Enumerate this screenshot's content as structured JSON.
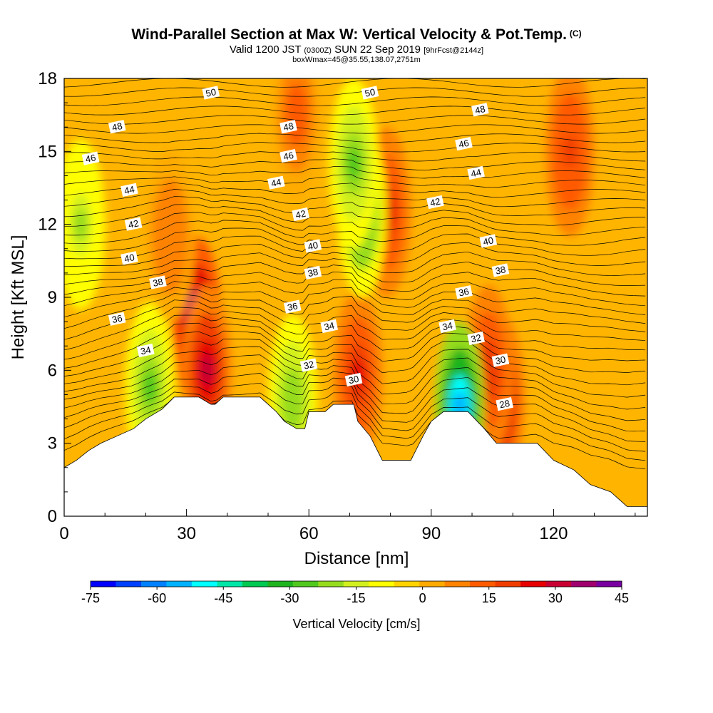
{
  "title": {
    "main": "Wind-Parallel Section at Max W: Vertical Velocity & Pot.Temp.",
    "copyright": "(C)",
    "valid_prefix": "Valid 1200 JST",
    "valid_utc": "(0300Z)",
    "valid_date": "SUN 22 Sep 2019",
    "forecast": "[9hrFcst@2144z]",
    "box_info": "boxWmax=45@35.55,138.07,2751m"
  },
  "colorbar": {
    "label": "Vertical Velocity [cm/s]",
    "ticks": [
      "-75",
      "-60",
      "-45",
      "-30",
      "-15",
      "0",
      "15",
      "30",
      "45"
    ],
    "colors": [
      "#0000ff",
      "#0040ff",
      "#0080ff",
      "#00b2ff",
      "#00ffff",
      "#00e6a8",
      "#00c850",
      "#1eb41e",
      "#50c81e",
      "#96dc1e",
      "#d2f01e",
      "#ffff00",
      "#ffd200",
      "#ffaa00",
      "#ff8200",
      "#ff5a00",
      "#f03c00",
      "#e60000",
      "#c80032",
      "#a0006e",
      "#7800a0"
    ]
  },
  "chart_data": {
    "type": "heatmap",
    "title": "Wind-Parallel Section at Max W: Vertical Velocity & Pot.Temp.",
    "xlabel": "Distance [nm]",
    "ylabel": "Height [Kft MSL]",
    "xlim": [
      0,
      143
    ],
    "ylim": [
      0,
      18
    ],
    "x_ticks": [
      "0",
      "30",
      "60",
      "90",
      "120"
    ],
    "y_ticks": [
      "0",
      "3",
      "6",
      "9",
      "12",
      "15",
      "18"
    ],
    "fill_variable": "Vertical Velocity [cm/s]",
    "fill_range": [
      -75,
      45
    ],
    "contour_variable": "Potential Temperature",
    "terrain": [
      [
        0,
        2.0
      ],
      [
        3,
        2.3
      ],
      [
        6,
        2.7
      ],
      [
        9,
        3.0
      ],
      [
        13,
        3.3
      ],
      [
        17,
        3.6
      ],
      [
        20,
        4.0
      ],
      [
        24,
        4.4
      ],
      [
        27,
        4.9
      ],
      [
        33,
        4.9
      ],
      [
        36,
        4.6
      ],
      [
        37,
        4.6
      ],
      [
        39,
        4.9
      ],
      [
        48,
        4.9
      ],
      [
        50,
        4.6
      ],
      [
        52,
        4.3
      ],
      [
        54,
        3.9
      ],
      [
        57,
        3.6
      ],
      [
        59,
        3.6
      ],
      [
        60,
        4.3
      ],
      [
        64,
        4.3
      ],
      [
        66,
        4.6
      ],
      [
        71,
        4.6
      ],
      [
        72,
        3.9
      ],
      [
        75,
        3.3
      ],
      [
        78,
        2.3
      ],
      [
        85,
        2.3
      ],
      [
        88,
        3.3
      ],
      [
        90,
        3.9
      ],
      [
        93,
        4.3
      ],
      [
        99,
        4.3
      ],
      [
        103,
        3.6
      ],
      [
        106,
        3.0
      ],
      [
        116,
        3.0
      ],
      [
        120,
        2.3
      ],
      [
        125,
        1.9
      ],
      [
        129,
        1.3
      ],
      [
        134,
        1.0
      ],
      [
        138,
        0.4
      ],
      [
        143,
        0.4
      ]
    ],
    "w_features": [
      {
        "x": 32.5,
        "y": 8.0,
        "w": 45
      },
      {
        "x": 35,
        "y": 6.0,
        "w": 28
      },
      {
        "x": 72,
        "y": 5.8,
        "w": 25
      },
      {
        "x": 79,
        "y": 12.5,
        "w": 24
      },
      {
        "x": 107,
        "y": 4.8,
        "w": 28
      },
      {
        "x": 104,
        "y": 6.0,
        "w": 20
      },
      {
        "x": 97,
        "y": 4.5,
        "w": -55
      },
      {
        "x": 73,
        "y": 12.5,
        "w": -32
      },
      {
        "x": 71,
        "y": 14.5,
        "w": -25
      },
      {
        "x": 21,
        "y": 5.3,
        "w": -25
      },
      {
        "x": 56,
        "y": 4.8,
        "w": -22
      },
      {
        "x": 4,
        "y": 12.0,
        "w": -20
      },
      {
        "x": 124,
        "y": 15.0,
        "w": 18
      },
      {
        "x": 57,
        "y": 16.5,
        "w": 14
      },
      {
        "x": 26,
        "y": 11.5,
        "w": 10
      }
    ],
    "theta_labels": [
      {
        "value": "50",
        "x": 36,
        "y": 17.4
      },
      {
        "value": "50",
        "x": 75,
        "y": 17.4
      },
      {
        "value": "48",
        "x": 13,
        "y": 16.0
      },
      {
        "value": "48",
        "x": 55,
        "y": 16.0
      },
      {
        "value": "48",
        "x": 102,
        "y": 16.7
      },
      {
        "value": "46",
        "x": 6.5,
        "y": 14.7
      },
      {
        "value": "46",
        "x": 55,
        "y": 14.8
      },
      {
        "value": "46",
        "x": 98,
        "y": 15.3
      },
      {
        "value": "44",
        "x": 16,
        "y": 13.4
      },
      {
        "value": "44",
        "x": 52,
        "y": 13.7
      },
      {
        "value": "44",
        "x": 101,
        "y": 14.1
      },
      {
        "value": "42",
        "x": 17,
        "y": 12.0
      },
      {
        "value": "42",
        "x": 58,
        "y": 12.4
      },
      {
        "value": "42",
        "x": 91,
        "y": 12.9
      },
      {
        "value": "40",
        "x": 16,
        "y": 10.6
      },
      {
        "value": "40",
        "x": 61,
        "y": 11.1
      },
      {
        "value": "40",
        "x": 104,
        "y": 11.3
      },
      {
        "value": "38",
        "x": 23,
        "y": 9.6
      },
      {
        "value": "38",
        "x": 61,
        "y": 10.0
      },
      {
        "value": "38",
        "x": 107,
        "y": 10.1
      },
      {
        "value": "36",
        "x": 13,
        "y": 8.1
      },
      {
        "value": "36",
        "x": 56,
        "y": 8.6
      },
      {
        "value": "36",
        "x": 98,
        "y": 9.2
      },
      {
        "value": "34",
        "x": 20,
        "y": 6.8
      },
      {
        "value": "34",
        "x": 65,
        "y": 7.8
      },
      {
        "value": "34",
        "x": 94,
        "y": 7.8
      },
      {
        "value": "32",
        "x": 60,
        "y": 6.2
      },
      {
        "value": "32",
        "x": 101,
        "y": 7.3
      },
      {
        "value": "30",
        "x": 71,
        "y": 5.6
      },
      {
        "value": "30",
        "x": 107,
        "y": 6.4
      },
      {
        "value": "28",
        "x": 108,
        "y": 4.6
      }
    ]
  }
}
